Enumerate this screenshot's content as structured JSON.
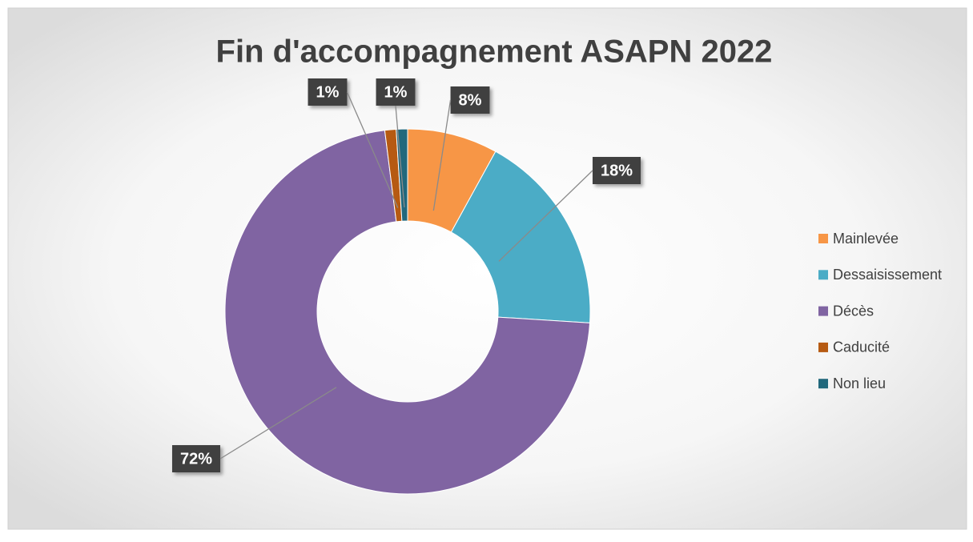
{
  "chart_data": {
    "type": "donut",
    "title": "Fin d'accompagnement ASAPN 2022",
    "categories": [
      "Mainlevée",
      "Dessaisissement",
      "Décès",
      "Caducité",
      "Non lieu"
    ],
    "values": [
      8,
      18,
      72,
      1,
      1
    ],
    "value_labels": [
      "8%",
      "18%",
      "72%",
      "1%",
      "1%"
    ],
    "colors": [
      "#f79646",
      "#4bacc6",
      "#8064a2",
      "#b65a12",
      "#21687c"
    ],
    "legend": "right"
  }
}
